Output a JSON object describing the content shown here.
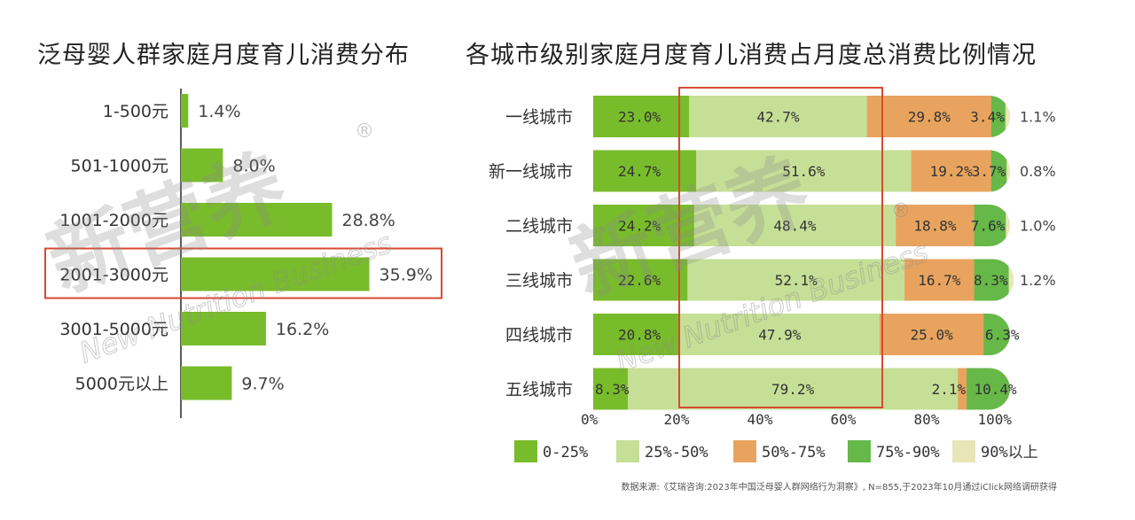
{
  "titles": {
    "left": "泛母婴人群家庭月度育儿消费分布",
    "right": "各城市级别家庭月度育儿消费占月度总消费比例情况"
  },
  "watermark": {
    "cn": "新营养",
    "en": "New Nutrition Business",
    "mark": "®"
  },
  "source": "数据来源:《艾瑞咨询:2023年中国泛母婴人群网络行为洞察》, N=855,于2023年10月通过iClick网络调研获得",
  "colors": {
    "bar": "#79bc2b",
    "seg": [
      "#79bc2b",
      "#c6df96",
      "#e8a45e",
      "#66b848",
      "#e8e6b8"
    ],
    "highlight": "#d84a32"
  },
  "chart_data": [
    {
      "type": "bar",
      "orientation": "horizontal",
      "categories": [
        "1-500元",
        "501-1000元",
        "1001-2000元",
        "2001-3000元",
        "3001-5000元",
        "5000元以上"
      ],
      "values": [
        1.4,
        8.0,
        28.8,
        35.9,
        16.2,
        9.7
      ],
      "labels": [
        "1.4%",
        "8.0%",
        "28.8%",
        "35.9%",
        "16.2%",
        "9.7%"
      ],
      "highlight_index": 3
    },
    {
      "type": "bar",
      "orientation": "horizontal",
      "stacked": true,
      "categories": [
        "一线城市",
        "新一线城市",
        "二线城市",
        "三线城市",
        "四线城市",
        "五线城市"
      ],
      "series": [
        {
          "name": "0-25%",
          "values": [
            23.0,
            24.7,
            24.2,
            22.6,
            20.8,
            8.3
          ],
          "labels": [
            "23.0%",
            "24.7%",
            "24.2%",
            "22.6%",
            "20.8%",
            "8.3%"
          ]
        },
        {
          "name": "25%-50%",
          "values": [
            42.7,
            51.6,
            48.4,
            52.1,
            47.9,
            79.2
          ],
          "labels": [
            "42.7%",
            "51.6%",
            "48.4%",
            "52.1%",
            "47.9%",
            "79.2%"
          ]
        },
        {
          "name": "50%-75%",
          "values": [
            29.8,
            19.2,
            18.8,
            16.7,
            25.0,
            2.1
          ],
          "labels": [
            "29.8%",
            "19.2%",
            "18.8%",
            "16.7%",
            "25.0%",
            "2.1%"
          ]
        },
        {
          "name": "75%-90%",
          "values": [
            3.4,
            3.7,
            7.6,
            8.3,
            6.3,
            10.4
          ],
          "labels": [
            "3.4%",
            "3.7%",
            "7.6%",
            "8.3%",
            "6.3%",
            "10.4%"
          ]
        },
        {
          "name": "90%以上",
          "values": [
            1.1,
            0.8,
            1.0,
            1.2,
            0.0,
            0.0
          ],
          "labels": [
            "1.1%",
            "0.8%",
            "1.0%",
            "1.2%",
            "",
            ""
          ]
        }
      ],
      "x_ticks": [
        "0%",
        "20%",
        "40%",
        "60%",
        "80%",
        "100%"
      ],
      "xlim": [
        0,
        100
      ],
      "highlight_range": [
        20,
        70
      ],
      "legend": "bottom"
    }
  ]
}
